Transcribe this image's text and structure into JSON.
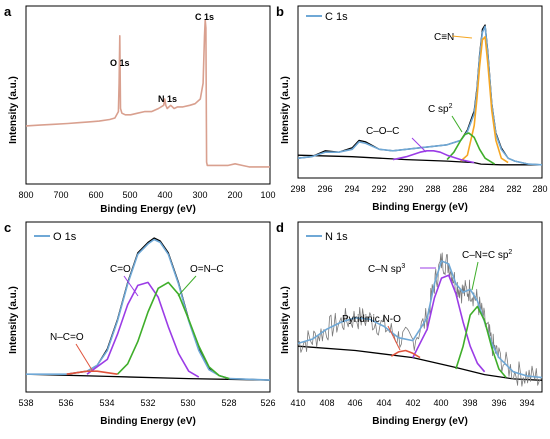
{
  "chart_data": [
    {
      "panel": "a",
      "type": "line",
      "xlabel": "Binding Energy (eV)",
      "ylabel": "Intensity (a.u.)",
      "xlim": [
        800,
        100
      ],
      "x_ticks": [
        "800",
        "700",
        "600",
        "500",
        "400",
        "300",
        "200",
        "100"
      ],
      "series": [
        {
          "color": "#d9a08f",
          "x": [
            800,
            760,
            720,
            680,
            650,
            620,
            590,
            560,
            545,
            535,
            533,
            531,
            529,
            525,
            515,
            500,
            480,
            460,
            440,
            420,
            405,
            402,
            399,
            395,
            385,
            375,
            365,
            350,
            330,
            315,
            300,
            292,
            288,
            286,
            284,
            282,
            280,
            270,
            260,
            240,
            220,
            200,
            180,
            160,
            140,
            120,
            100
          ],
          "y": [
            0.33,
            0.335,
            0.34,
            0.345,
            0.35,
            0.355,
            0.36,
            0.37,
            0.38,
            0.42,
            0.6,
            0.9,
            0.44,
            0.41,
            0.4,
            0.4,
            0.41,
            0.42,
            0.42,
            0.44,
            0.46,
            0.5,
            0.46,
            0.44,
            0.46,
            0.44,
            0.45,
            0.45,
            0.46,
            0.47,
            0.5,
            0.6,
            0.9,
            1.0,
            0.95,
            0.1,
            0.08,
            0.08,
            0.08,
            0.08,
            0.08,
            0.09,
            0.08,
            0.07,
            0.07,
            0.07,
            0.07
          ]
        }
      ],
      "annotations": [
        "O 1s",
        "N 1s",
        "C 1s"
      ]
    },
    {
      "panel": "b",
      "type": "line",
      "xlabel": "Binding Energy (eV)",
      "ylabel": "Intensity (a.u.)",
      "xlim": [
        298,
        280
      ],
      "x_ticks": [
        "298",
        "296",
        "294",
        "292",
        "290",
        "288",
        "286",
        "284",
        "282",
        "280"
      ],
      "legend": {
        "label": "C 1s",
        "position": "top-left"
      },
      "series": [
        {
          "color": "#000000",
          "x": [
            298,
            294,
            290,
            287,
            285,
            284.5,
            283,
            280
          ],
          "y": [
            0.1,
            0.09,
            0.07,
            0.06,
            0.05,
            0.04,
            0.035,
            0.035
          ]
        },
        {
          "color": "#000000",
          "x": [
            298,
            297,
            296,
            295,
            294,
            293.5,
            293,
            292,
            291,
            290,
            289,
            288,
            287,
            286,
            285.5,
            285,
            284.8,
            284.6,
            284.4,
            284.2,
            284,
            283.7,
            283.4,
            283,
            282.5,
            282,
            281,
            280
          ],
          "y": [
            0.08,
            0.09,
            0.13,
            0.12,
            0.15,
            0.2,
            0.19,
            0.14,
            0.13,
            0.14,
            0.15,
            0.16,
            0.17,
            0.2,
            0.27,
            0.4,
            0.55,
            0.78,
            0.95,
            0.98,
            0.8,
            0.45,
            0.25,
            0.15,
            0.08,
            0.06,
            0.04,
            0.035
          ]
        },
        {
          "color": "#6fa8d6",
          "x": [
            298,
            297,
            296,
            295,
            294,
            293.5,
            293,
            292,
            291,
            290,
            289,
            288,
            287,
            286,
            285.5,
            285,
            284.8,
            284.6,
            284.4,
            284.2,
            284,
            283.7,
            283.4,
            283,
            282.5,
            282,
            281,
            280
          ],
          "y": [
            0.08,
            0.09,
            0.12,
            0.12,
            0.14,
            0.19,
            0.18,
            0.14,
            0.13,
            0.14,
            0.15,
            0.16,
            0.17,
            0.2,
            0.26,
            0.38,
            0.53,
            0.76,
            0.93,
            0.97,
            0.78,
            0.44,
            0.24,
            0.14,
            0.08,
            0.06,
            0.04,
            0.035
          ]
        },
        {
          "color": "#f5a623",
          "x": [
            286,
            285.5,
            285,
            284.8,
            284.6,
            284.4,
            284.2,
            284,
            283.7,
            283.4,
            283,
            282.5
          ],
          "y": [
            0.06,
            0.1,
            0.3,
            0.48,
            0.7,
            0.88,
            0.9,
            0.72,
            0.4,
            0.2,
            0.08,
            0.05
          ]
        },
        {
          "color": "#3fae2a",
          "x": [
            287,
            286.5,
            286,
            285.7,
            285.4,
            285,
            284.6,
            284.2,
            283.5
          ],
          "y": [
            0.07,
            0.12,
            0.2,
            0.24,
            0.25,
            0.22,
            0.14,
            0.08,
            0.04
          ]
        },
        {
          "color": "#9b3ce6",
          "x": [
            291,
            290,
            289,
            288.5,
            288,
            287.5,
            287,
            286,
            285
          ],
          "y": [
            0.07,
            0.09,
            0.12,
            0.13,
            0.13,
            0.12,
            0.1,
            0.07,
            0.05
          ]
        }
      ],
      "annotations": [
        "C≡N",
        "C sp2",
        "C–O–C"
      ]
    },
    {
      "panel": "c",
      "type": "line",
      "xlabel": "Binding Energy (eV)",
      "ylabel": "Intensity (a.u.)",
      "xlim": [
        538,
        526
      ],
      "x_ticks": [
        "538",
        "536",
        "534",
        "532",
        "530",
        "528",
        "526"
      ],
      "legend": {
        "label": "O 1s",
        "position": "top-left"
      },
      "series": [
        {
          "color": "#000000",
          "x": [
            538,
            534,
            530,
            526
          ],
          "y": [
            0.08,
            0.065,
            0.05,
            0.04
          ]
        },
        {
          "color": "#000000",
          "x": [
            538,
            536,
            535,
            534.5,
            534,
            533.5,
            533,
            532.5,
            532,
            531.7,
            531.4,
            531,
            530.5,
            530,
            529.5,
            529,
            528.5,
            528,
            527,
            526
          ],
          "y": [
            0.08,
            0.08,
            0.1,
            0.14,
            0.25,
            0.45,
            0.7,
            0.9,
            0.97,
            1.0,
            0.98,
            0.9,
            0.7,
            0.45,
            0.25,
            0.12,
            0.07,
            0.05,
            0.045,
            0.04
          ]
        },
        {
          "color": "#6fa8d6",
          "x": [
            538,
            536,
            535,
            534.5,
            534,
            533.5,
            533,
            532.5,
            532,
            531.7,
            531.4,
            531,
            530.5,
            530,
            529.5,
            529,
            528.5,
            528,
            527,
            526
          ],
          "y": [
            0.08,
            0.08,
            0.1,
            0.14,
            0.24,
            0.44,
            0.69,
            0.89,
            0.96,
            0.99,
            0.97,
            0.89,
            0.69,
            0.44,
            0.24,
            0.11,
            0.07,
            0.05,
            0.045,
            0.04
          ]
        },
        {
          "color": "#9b3ce6",
          "x": [
            535,
            534,
            533.5,
            533,
            532.5,
            532,
            531.5,
            531,
            530.5,
            530,
            529.5
          ],
          "y": [
            0.08,
            0.18,
            0.35,
            0.55,
            0.68,
            0.7,
            0.6,
            0.4,
            0.22,
            0.1,
            0.06
          ]
        },
        {
          "color": "#3fae2a",
          "x": [
            533.5,
            533,
            532.5,
            532,
            531.5,
            531,
            530.5,
            530,
            529.5,
            529,
            528.5,
            528
          ],
          "y": [
            0.08,
            0.15,
            0.3,
            0.5,
            0.66,
            0.7,
            0.62,
            0.45,
            0.27,
            0.13,
            0.07,
            0.05
          ]
        },
        {
          "color": "#e0533c",
          "x": [
            536,
            535.5,
            535,
            534.5,
            534,
            533.5
          ],
          "y": [
            0.08,
            0.09,
            0.1,
            0.1,
            0.09,
            0.08
          ]
        }
      ],
      "annotations": [
        "C=O",
        "O=N–C",
        "N–C=O"
      ]
    },
    {
      "panel": "d",
      "type": "line",
      "xlabel": "Binding Energy (eV)",
      "ylabel": "Intensity (a.u.)",
      "xlim": [
        410,
        393
      ],
      "x_ticks": [
        "410",
        "408",
        "406",
        "404",
        "402",
        "400",
        "398",
        "396",
        "394"
      ],
      "legend": {
        "label": "N 1s",
        "position": "top-left"
      },
      "series": [
        {
          "color": "#000000",
          "x": [
            410,
            406,
            402,
            399,
            397,
            395,
            393
          ],
          "y": [
            0.28,
            0.25,
            0.2,
            0.13,
            0.08,
            0.05,
            0.04
          ]
        },
        {
          "color": "#7a7a7a",
          "noisy": true,
          "x": [
            410,
            409,
            408,
            407,
            406,
            405,
            404,
            403,
            402,
            401,
            400.5,
            400,
            399.5,
            399,
            398.5,
            398,
            397.5,
            397,
            396.5,
            396,
            395,
            394,
            393
          ],
          "y": [
            0.3,
            0.33,
            0.4,
            0.45,
            0.48,
            0.47,
            0.42,
            0.34,
            0.32,
            0.48,
            0.72,
            0.88,
            0.86,
            0.72,
            0.66,
            0.68,
            0.6,
            0.45,
            0.3,
            0.2,
            0.1,
            0.07,
            0.06
          ]
        },
        {
          "color": "#6fa8d6",
          "x": [
            410,
            409,
            408,
            407,
            406,
            405,
            404,
            403,
            402,
            401,
            400.5,
            400,
            399.5,
            399,
            398.5,
            398,
            397.5,
            397,
            396.5,
            396,
            395,
            394,
            393
          ],
          "y": [
            0.3,
            0.33,
            0.4,
            0.45,
            0.48,
            0.47,
            0.42,
            0.34,
            0.32,
            0.48,
            0.72,
            0.88,
            0.86,
            0.72,
            0.66,
            0.68,
            0.6,
            0.45,
            0.3,
            0.2,
            0.1,
            0.07,
            0.06
          ]
        },
        {
          "color": "#9b3ce6",
          "x": [
            402,
            401,
            400.5,
            400,
            399.5,
            399,
            398.5,
            398,
            397.5,
            397
          ],
          "y": [
            0.2,
            0.4,
            0.62,
            0.76,
            0.78,
            0.65,
            0.45,
            0.28,
            0.16,
            0.1
          ]
        },
        {
          "color": "#3fae2a",
          "x": [
            399,
            398.5,
            398,
            397.5,
            397,
            396.5,
            396,
            395.5
          ],
          "y": [
            0.12,
            0.28,
            0.5,
            0.56,
            0.46,
            0.27,
            0.12,
            0.06
          ]
        },
        {
          "color": "#e0533c",
          "x": [
            403.5,
            403,
            402.5,
            402,
            401.5
          ],
          "y": [
            0.21,
            0.24,
            0.25,
            0.23,
            0.2
          ]
        }
      ],
      "annotations": [
        "Pyridinic N-O",
        "C–N sp3",
        "C–N=C sp2"
      ]
    }
  ],
  "labels": {
    "a": {
      "letter": "a",
      "xlabel": "Binding Energy (eV)",
      "ylabel": "Intensity (a.u.)",
      "ticks": [
        "800",
        "700",
        "600",
        "500",
        "400",
        "300",
        "200",
        "100"
      ],
      "ann_o1s": "O 1s",
      "ann_n1s": "N 1s",
      "ann_c1s": "C 1s"
    },
    "b": {
      "letter": "b",
      "xlabel": "Binding Energy (eV)",
      "ylabel": "Intensity (a.u.)",
      "legend": "C 1s",
      "ticks": [
        "298",
        "296",
        "294",
        "292",
        "290",
        "288",
        "286",
        "284",
        "282",
        "280"
      ],
      "ann_cn": "C≡N",
      "ann_csp_main": "C sp",
      "ann_csp_sup": "2",
      "ann_coc": "C–O–C"
    },
    "c": {
      "letter": "c",
      "xlabel": "Binding Energy (eV)",
      "ylabel": "Intensity (a.u.)",
      "legend": "O 1s",
      "ticks": [
        "538",
        "536",
        "534",
        "532",
        "530",
        "528",
        "526"
      ],
      "ann_co": "C=O",
      "ann_onc": "O=N–C",
      "ann_nco": "N–C=O"
    },
    "d": {
      "letter": "d",
      "xlabel": "Binding Energy (eV)",
      "ylabel": "Intensity (a.u.)",
      "legend": "N 1s",
      "ticks": [
        "410",
        "408",
        "406",
        "404",
        "402",
        "400",
        "398",
        "396",
        "394"
      ],
      "ann_pyr": "Pyridinic N-O",
      "ann_cnsp3_main": "C–N sp",
      "ann_cnsp3_sup": "3",
      "ann_cnc_main": "C–N=C sp",
      "ann_cnc_sup": "2"
    }
  },
  "colors": {
    "survey": "#d9a08f",
    "envelope": "#6fa8d6",
    "raw": "#000000",
    "orange": "#f5a623",
    "green": "#3fae2a",
    "purple": "#9b3ce6",
    "red": "#e0533c",
    "noisy": "#7a7a7a"
  }
}
